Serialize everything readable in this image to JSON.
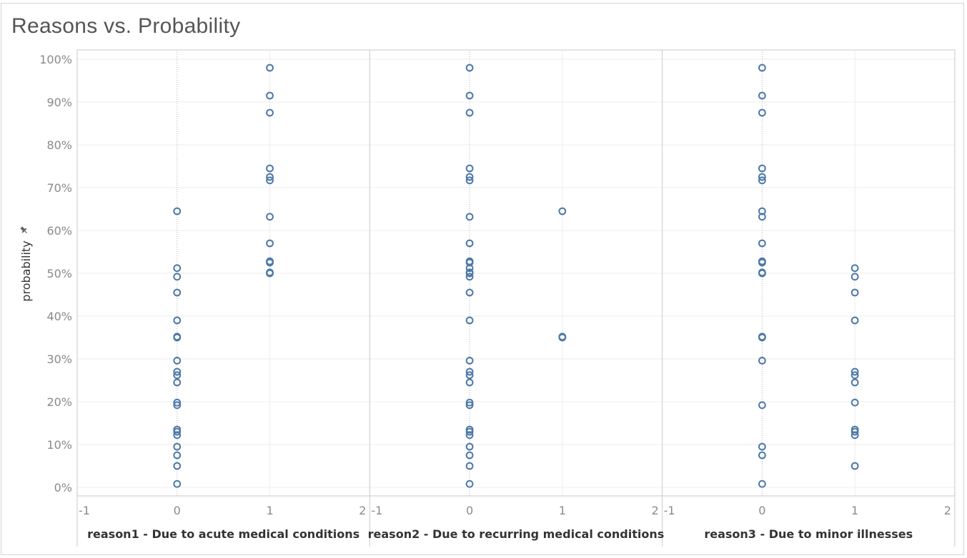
{
  "chart_data": {
    "type": "scatter",
    "title": "Reasons vs. Probability",
    "ylabel": "probability",
    "y_ticks": [
      "0%",
      "10%",
      "20%",
      "30%",
      "40%",
      "50%",
      "60%",
      "70%",
      "80%",
      "90%",
      "100%"
    ],
    "ylim": [
      0,
      100
    ],
    "grid": true,
    "panels": [
      {
        "label": "reason1 - Due to acute medical conditions",
        "x_ticks": [
          "-1",
          "0",
          "1",
          "2"
        ],
        "xlim": [
          -1,
          2
        ],
        "series": [
          {
            "x": 0,
            "values": [
              64.5,
              51.2,
              49.2,
              45.5,
              39.0,
              35.2,
              35.0,
              29.6,
              27.0,
              26.2,
              24.5,
              19.8,
              19.2,
              13.5,
              13.0,
              12.2,
              9.5,
              7.5,
              5.0,
              0.8
            ]
          },
          {
            "x": 1,
            "values": [
              98.0,
              91.5,
              87.5,
              74.5,
              72.5,
              71.7,
              63.2,
              57.0,
              52.8,
              52.5,
              50.2,
              50.0
            ]
          }
        ]
      },
      {
        "label": "reason2 - Due to recurring medical conditions",
        "x_ticks": [
          "-1",
          "0",
          "1",
          "2"
        ],
        "xlim": [
          -1,
          2
        ],
        "series": [
          {
            "x": 0,
            "values": [
              98.0,
              91.5,
              87.5,
              74.5,
              72.5,
              71.7,
              63.2,
              57.0,
              52.8,
              52.5,
              51.2,
              50.2,
              50.0,
              49.2,
              45.5,
              39.0,
              29.6,
              27.0,
              26.2,
              24.5,
              19.8,
              19.2,
              13.5,
              13.0,
              12.2,
              9.5,
              7.5,
              5.0,
              0.8
            ]
          },
          {
            "x": 1,
            "values": [
              64.5,
              35.2,
              35.0
            ]
          }
        ]
      },
      {
        "label": "reason3 - Due to minor illnesses",
        "x_ticks": [
          "-1",
          "0",
          "1",
          "2"
        ],
        "xlim": [
          -1,
          2
        ],
        "series": [
          {
            "x": 0,
            "values": [
              98.0,
              91.5,
              87.5,
              74.5,
              72.5,
              71.7,
              64.5,
              63.2,
              57.0,
              52.8,
              52.5,
              50.2,
              50.0,
              35.2,
              35.0,
              29.6,
              19.2,
              9.5,
              7.5,
              0.8
            ]
          },
          {
            "x": 1,
            "values": [
              51.2,
              49.2,
              45.5,
              39.0,
              27.0,
              26.2,
              24.5,
              19.8,
              13.5,
              13.0,
              12.2,
              5.0
            ]
          }
        ]
      }
    ],
    "colors": {
      "marker": "#4e79a7",
      "grid": "#ededed",
      "zero_line": "#b5b5b5",
      "panel_border": "#c8c8c8"
    }
  }
}
